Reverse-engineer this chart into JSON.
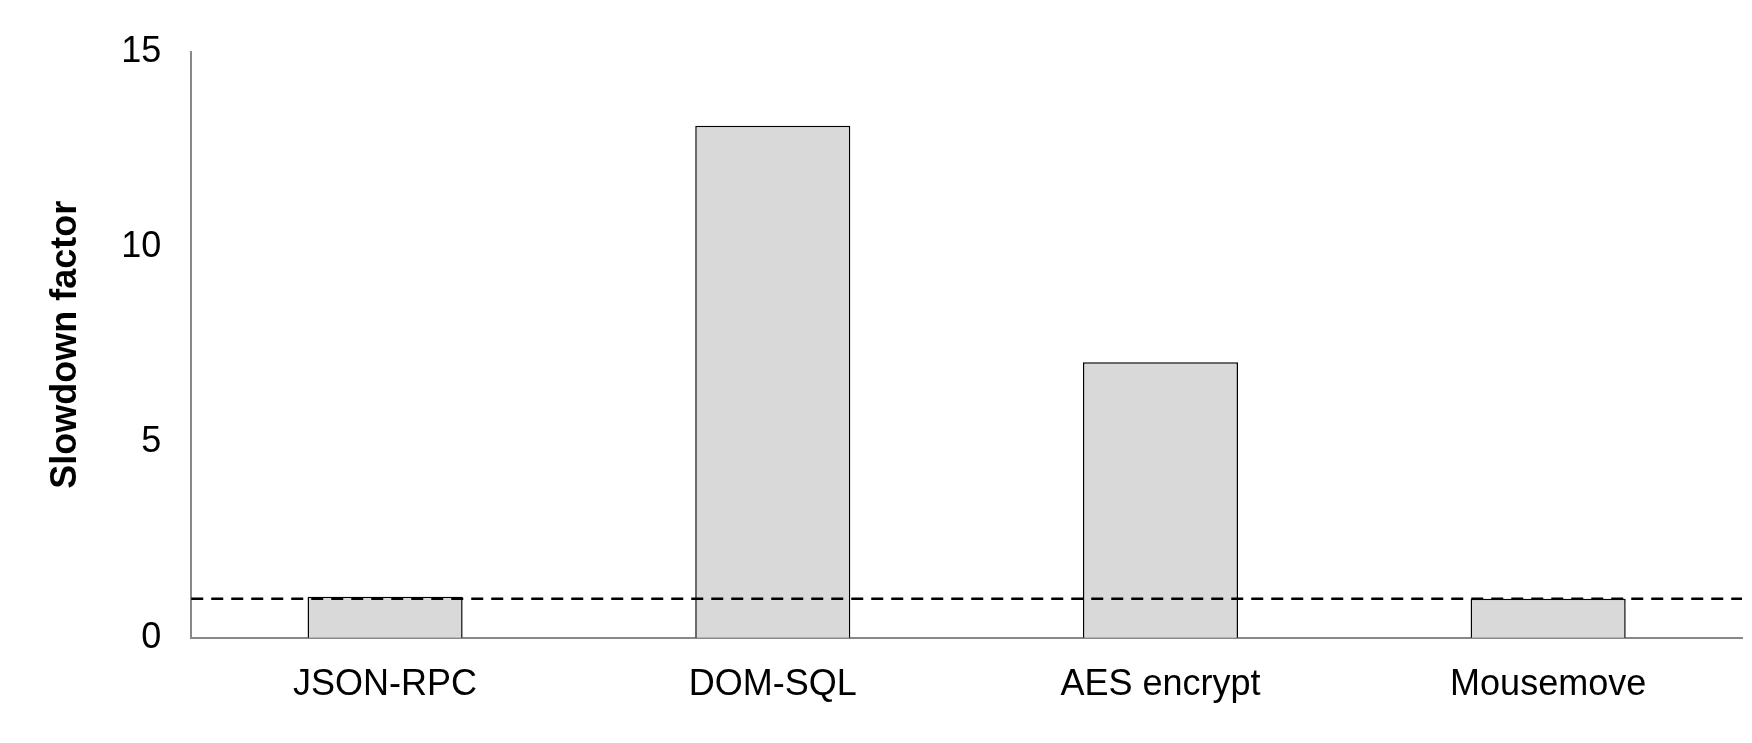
{
  "chart_data": {
    "type": "bar",
    "ylabel": "Slowdown factor",
    "categories": [
      "JSON-RPC",
      "DOM-SQL",
      "AES encrypt",
      "Mousemove"
    ],
    "values": [
      1.05,
      13.1,
      7.05,
      1.0
    ],
    "color": "#d9d9d9",
    "ylim": [
      0,
      15
    ],
    "yticks": [
      0,
      5,
      10,
      15
    ],
    "grid": false,
    "legend": false,
    "ref_lines": [
      {
        "axis": "y",
        "value": 1,
        "color": "#000000",
        "line_style": "dashed"
      }
    ]
  }
}
